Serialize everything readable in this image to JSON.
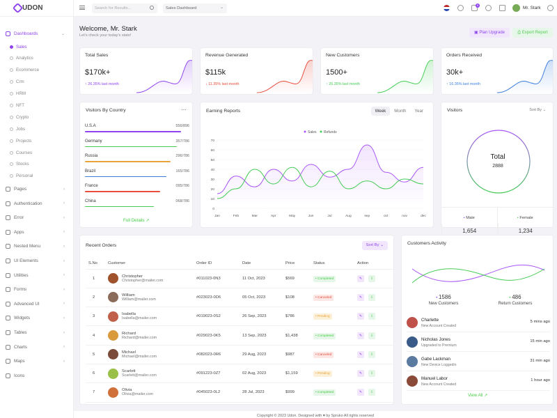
{
  "brand": {
    "name": "UDON"
  },
  "sidebar": {
    "dashboards": "Dashboards",
    "sub": [
      "Sales",
      "Analytics",
      "Ecommerce",
      "Crm",
      "HRM",
      "NFT",
      "Crypto",
      "Jobs",
      "Projects",
      "Courses",
      "Stocks",
      "Personal"
    ],
    "items": [
      "Pages",
      "Authentication",
      "Error",
      "Apps",
      "Nested Menu",
      "UI Elements",
      "Utilities",
      "Forms",
      "Advanced UI",
      "Widgets",
      "Tables",
      "Charts",
      "Maps",
      "Icons"
    ]
  },
  "topbar": {
    "search_placeholder": "Search for Results...",
    "select_value": "Sales Dashboard",
    "notif_count": "5",
    "user_name": "Mr. Stark"
  },
  "header": {
    "title": "Welcome, Mr. Stark",
    "subtitle": "Let's check your today's stats!",
    "plan_button": "Plan Upgrade",
    "export_button": "Export Report"
  },
  "stats": [
    {
      "title": "Total Sales",
      "value": "$170k+",
      "delta": "26.35% last month",
      "color": "#8e44ec"
    },
    {
      "title": "Revenue Generated",
      "value": "$115k",
      "delta": "11.35% last month",
      "color": "#e74c3c"
    },
    {
      "title": "New Customers",
      "value": "1500+",
      "delta": "26.35% last month",
      "color": "#44cc55"
    },
    {
      "title": "Orders Received",
      "value": "30k+",
      "delta": "16.35% last month",
      "color": "#3b7ddd"
    }
  ],
  "visitors_country": {
    "title": "Visitors By Country",
    "rows": [
      {
        "name": "U.S.A",
        "value": "556/896",
        "fill": 0.92,
        "color": "#8e44ec"
      },
      {
        "name": "Germany",
        "value": "357/786",
        "fill": 0.88,
        "color": "#44cc55"
      },
      {
        "name": "Russia",
        "value": "296/786",
        "fill": 0.82,
        "color": "#e8a33b"
      },
      {
        "name": "Brazil",
        "value": "165/786",
        "fill": 0.78,
        "color": "#3b7ddd"
      },
      {
        "name": "France",
        "value": "095/786",
        "fill": 0.72,
        "color": "#e74c3c"
      },
      {
        "name": "China",
        "value": "068/786",
        "fill": 0.66,
        "color": "#44cc55"
      }
    ],
    "link": "Full Details"
  },
  "earning": {
    "title": "Earning Reports",
    "tabs": [
      "Week",
      "Month",
      "Year"
    ],
    "legend": [
      "Sales",
      "Refunds"
    ]
  },
  "chart_data": {
    "type": "line",
    "categories": [
      "Jan",
      "Feb",
      "Mar",
      "Apr",
      "May",
      "Jun",
      "Jul",
      "Aug",
      "sep",
      "oct",
      "nov",
      "dec"
    ],
    "series": [
      {
        "name": "Sales",
        "values": [
          15,
          33,
          22,
          40,
          28,
          45,
          32,
          40,
          65,
          37,
          27,
          42
        ]
      },
      {
        "name": "Refunds",
        "values": [
          10,
          20,
          40,
          25,
          42,
          22,
          38,
          20,
          28,
          20,
          30,
          25
        ]
      }
    ],
    "ylim": [
      0,
      70
    ],
    "yticks": [
      0,
      10,
      20,
      30,
      40,
      50,
      60,
      70
    ]
  },
  "visitors": {
    "title": "Visitors",
    "sort": "Sort By",
    "total_label": "Total",
    "total": "2888",
    "male_label": "Male",
    "male": "1,654",
    "female_label": "Female",
    "female": "1,234"
  },
  "orders": {
    "title": "Recent Orders",
    "sort": "Sort By",
    "headers": [
      "S.No",
      "Customer",
      "Order ID",
      "Date",
      "Price",
      "Status",
      "Action"
    ],
    "rows": [
      {
        "no": "1",
        "name": "Christopher",
        "email": "Christopher@mailer.com",
        "id": "#011023-0N3",
        "date": "11 Oct, 2023",
        "price": "$569",
        "status": "Completed",
        "s": "c",
        "av": "#a0522d"
      },
      {
        "no": "2",
        "name": "William",
        "email": "William@mailer.com",
        "id": "#023023-0D6",
        "date": "05 Oct, 2023",
        "price": "$108",
        "status": "Canceled",
        "s": "x",
        "av": "#8b6b5a"
      },
      {
        "no": "3",
        "name": "Isabella",
        "email": "Isabella@mailer.com",
        "id": "#019023-0S2",
        "date": "26 Sep, 2023",
        "price": "$786",
        "status": "Pending",
        "s": "p",
        "av": "#c0604a"
      },
      {
        "no": "4",
        "name": "Richard",
        "email": "Richard@mailer.com",
        "id": "#029023-0K5",
        "date": "13 Sep, 2023",
        "price": "$1,438",
        "status": "Completed",
        "s": "c",
        "av": "#d89a3a"
      },
      {
        "no": "5",
        "name": "Michael",
        "email": "Michael@mailer.com",
        "id": "#082023-0R6",
        "date": "29 Aug, 2023",
        "price": "$987",
        "status": "Canceled",
        "s": "x",
        "av": "#7a4b3a"
      },
      {
        "no": "6",
        "name": "Scarlett",
        "email": "Scarlett@mailer.com",
        "id": "#091223-0Z7",
        "date": "02 Aug, 2023",
        "price": "$1,159",
        "status": "Pending",
        "s": "p",
        "av": "#9ac04a"
      },
      {
        "no": "7",
        "name": "Olivia",
        "email": "Olivia@mailer.com",
        "id": "#045023-0L2",
        "date": "28 Jul, 2023",
        "price": "$999",
        "status": "Completed",
        "s": "c",
        "av": "#d0703a"
      }
    ]
  },
  "activity": {
    "title": "Customers Activity",
    "new_value": "1586",
    "new_label": "New Customers",
    "ret_value": "486",
    "ret_label": "Return Customers",
    "items": [
      {
        "name": "Charlette",
        "desc": "New Account Created",
        "time": "5 mins ago",
        "av": "#c0504a"
      },
      {
        "name": "Nicholas Jones",
        "desc": "Upgraded to Premium",
        "time": "15 min ago",
        "av": "#3a5a8a"
      },
      {
        "name": "Gabe Lackman",
        "desc": "New Device Loggedin",
        "time": "31 min ago",
        "av": "#5a7aa0"
      },
      {
        "name": "Manuel Labor",
        "desc": "New Account Created",
        "time": "1 hour ago",
        "av": "#8a4a3a"
      }
    ],
    "link": "View All"
  },
  "footer": {
    "text": "Copyright © 2023 Udon. Designed with ♥ by Spruko All rights reserved"
  }
}
